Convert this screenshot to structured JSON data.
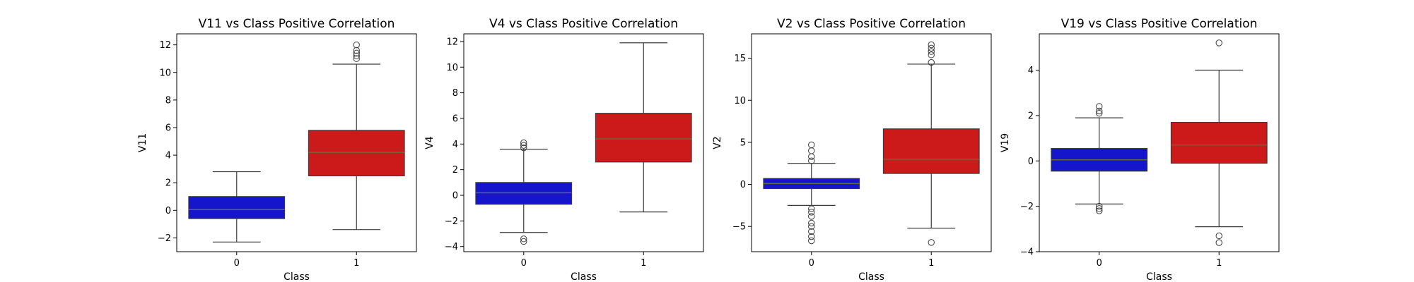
{
  "chart_data": [
    {
      "type": "box",
      "title": "V11 vs Class Positive Correlation",
      "xlabel": "Class",
      "ylabel": "V11",
      "ylim": [
        -3,
        12.8
      ],
      "yticks": [
        -2,
        0,
        2,
        4,
        6,
        8,
        10,
        12
      ],
      "categories": [
        "0",
        "1"
      ],
      "colors": [
        "#1515cc",
        "#cc1a1a"
      ],
      "boxes": [
        {
          "category": "0",
          "whisker_low": -2.3,
          "q1": -0.6,
          "median": 0.05,
          "q3": 1.0,
          "whisker_high": 2.8,
          "outliers": []
        },
        {
          "category": "1",
          "whisker_low": -1.4,
          "q1": 2.5,
          "median": 4.2,
          "q3": 5.8,
          "whisker_high": 10.6,
          "outliers": [
            11.0,
            11.2,
            11.4,
            11.6,
            12.0
          ]
        }
      ]
    },
    {
      "type": "box",
      "title": "V4 vs Class Positive Correlation",
      "xlabel": "Class",
      "ylabel": "V4",
      "ylim": [
        -4.4,
        12.6
      ],
      "yticks": [
        -4,
        -2,
        0,
        2,
        4,
        6,
        8,
        10,
        12
      ],
      "categories": [
        "0",
        "1"
      ],
      "colors": [
        "#1515cc",
        "#cc1a1a"
      ],
      "boxes": [
        {
          "category": "0",
          "whisker_low": -2.9,
          "q1": -0.7,
          "median": 0.2,
          "q3": 1.0,
          "whisker_high": 3.6,
          "outliers": [
            -3.4,
            -3.6,
            3.7,
            3.9,
            4.1
          ]
        },
        {
          "category": "1",
          "whisker_low": -1.3,
          "q1": 2.6,
          "median": 4.4,
          "q3": 6.4,
          "whisker_high": 11.9,
          "outliers": []
        }
      ]
    },
    {
      "type": "box",
      "title": "V2 vs Class Positive Correlation",
      "xlabel": "Class",
      "ylabel": "V2",
      "ylim": [
        -8.0,
        17.9
      ],
      "yticks": [
        -5,
        0,
        5,
        10,
        15
      ],
      "categories": [
        "0",
        "1"
      ],
      "colors": [
        "#1515cc",
        "#cc1a1a"
      ],
      "boxes": [
        {
          "category": "0",
          "whisker_low": -2.5,
          "q1": -0.5,
          "median": 0.1,
          "q3": 0.7,
          "whisker_high": 2.5,
          "outliers": [
            -2.9,
            -3.3,
            -3.8,
            -4.6,
            -5.0,
            -5.6,
            -6.2,
            -6.7,
            2.8,
            3.3,
            4.0,
            4.7
          ]
        },
        {
          "category": "1",
          "whisker_low": -5.2,
          "q1": 1.3,
          "median": 3.0,
          "q3": 6.6,
          "whisker_high": 14.3,
          "outliers": [
            -6.9,
            14.5,
            15.4,
            15.8,
            16.2,
            16.6
          ]
        }
      ]
    },
    {
      "type": "box",
      "title": "V19 vs Class Positive Correlation",
      "xlabel": "Class",
      "ylabel": "V19",
      "ylim": [
        -4.0,
        5.6
      ],
      "yticks": [
        -4,
        -2,
        0,
        2,
        4
      ],
      "categories": [
        "0",
        "1"
      ],
      "colors": [
        "#1515cc",
        "#cc1a1a"
      ],
      "boxes": [
        {
          "category": "0",
          "whisker_low": -1.9,
          "q1": -0.45,
          "median": 0.05,
          "q3": 0.55,
          "whisker_high": 1.9,
          "outliers": [
            -2.0,
            -2.1,
            -2.2,
            2.1,
            2.2,
            2.4
          ]
        },
        {
          "category": "1",
          "whisker_low": -2.9,
          "q1": -0.1,
          "median": 0.7,
          "q3": 1.7,
          "whisker_high": 4.0,
          "outliers": [
            -3.3,
            -3.6,
            5.2
          ]
        }
      ]
    }
  ]
}
